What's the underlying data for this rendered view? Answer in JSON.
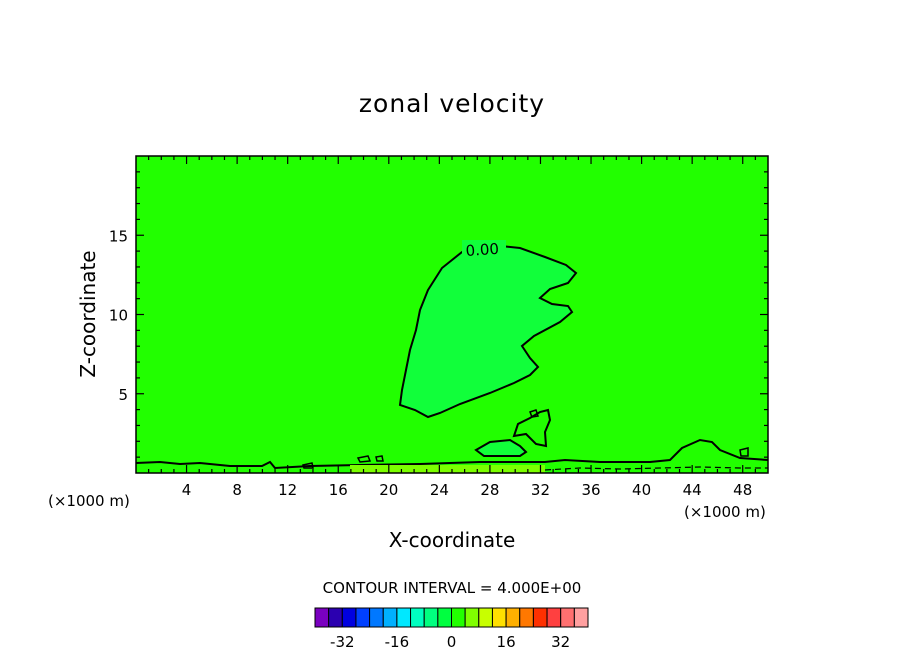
{
  "chart_data": {
    "type": "heatmap",
    "title": "zonal velocity",
    "xlabel": "X-coordinate",
    "ylabel": "Z-coordinate",
    "x_unit_left": "(×1000 m)",
    "x_unit_right": "(×1000 m)",
    "xlim": [
      0,
      50
    ],
    "ylim": [
      0,
      20
    ],
    "x_ticks": [
      4,
      8,
      12,
      16,
      20,
      24,
      28,
      32,
      36,
      40,
      44,
      48
    ],
    "y_ticks": [
      5,
      10,
      15
    ],
    "background_color": "#22ff00",
    "contour_label": "0.00",
    "contour_interval_text": "CONTOUR INTERVAL = 4.000E+00",
    "colorbar": {
      "tick_labels": [
        "-32",
        "-16",
        "0",
        "16",
        "32"
      ],
      "tick_values": [
        -32,
        -16,
        0,
        16,
        32
      ],
      "range": [
        -40,
        40
      ],
      "colors": [
        "#7a00c0",
        "#2b00b0",
        "#0000e0",
        "#0040ff",
        "#0078ff",
        "#00b0ff",
        "#00e8ff",
        "#00ffc0",
        "#00ff80",
        "#00ff40",
        "#22ff00",
        "#80ff00",
        "#c8ff00",
        "#ffe000",
        "#ffb000",
        "#ff7800",
        "#ff3000",
        "#ff4040",
        "#ff7070",
        "#ffa0a0"
      ]
    }
  }
}
